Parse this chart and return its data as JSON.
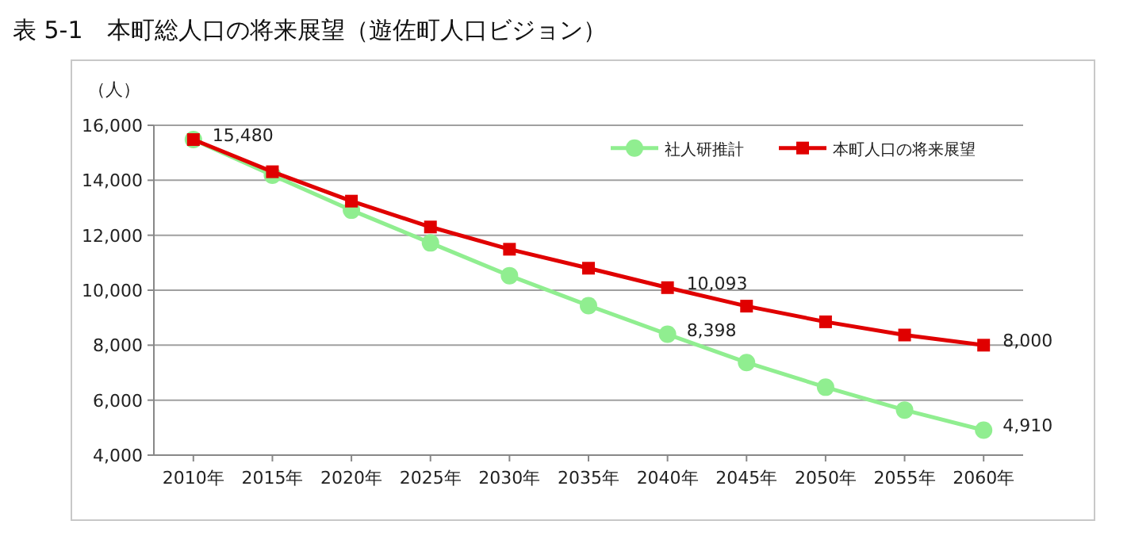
{
  "chart_data": {
    "type": "line",
    "title": "表 5-1　本町総人口の将来展望（遊佐町人口ビジョン）",
    "ylabel": "（人）",
    "categories": [
      "2010年",
      "2015年",
      "2020年",
      "2025年",
      "2030年",
      "2035年",
      "2040年",
      "2045年",
      "2050年",
      "2055年",
      "2060年"
    ],
    "series": [
      {
        "name": "社人研推計",
        "color": "#90ee90",
        "marker": "circle",
        "values": [
          15480,
          14180,
          12910,
          11720,
          10530,
          9440,
          8398,
          7370,
          6470,
          5640,
          4910
        ],
        "value_labels": [
          null,
          null,
          null,
          null,
          null,
          null,
          "8,398",
          null,
          null,
          null,
          "4,910"
        ]
      },
      {
        "name": "本町人口の将来展望",
        "color": "#e00000",
        "marker": "square",
        "values": [
          15480,
          14310,
          13240,
          12300,
          11490,
          10800,
          10093,
          9420,
          8850,
          8370,
          8000
        ],
        "value_labels": [
          "15,480",
          null,
          null,
          null,
          null,
          null,
          "10,093",
          null,
          null,
          null,
          "8,000"
        ]
      }
    ],
    "ylim": [
      4000,
      16000
    ],
    "yticks": [
      {
        "value": 4000,
        "label": "4,000"
      },
      {
        "value": 6000,
        "label": "6,000"
      },
      {
        "value": 8000,
        "label": "8,000"
      },
      {
        "value": 10000,
        "label": "10,000"
      },
      {
        "value": 12000,
        "label": "12,000"
      },
      {
        "value": 14000,
        "label": "14,000"
      },
      {
        "value": 16000,
        "label": "16,000"
      }
    ],
    "grid": "y",
    "legend": "top right",
    "line_style": "solid"
  }
}
